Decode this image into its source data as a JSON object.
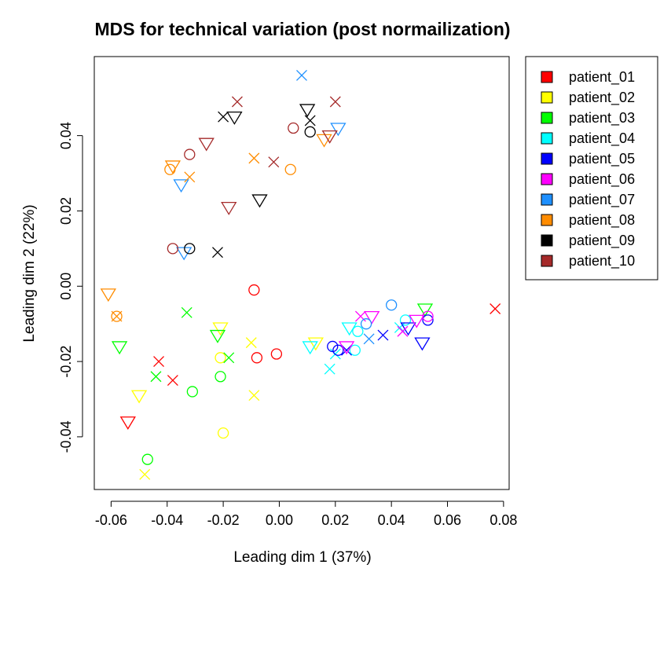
{
  "chart_data": {
    "type": "scatter",
    "title": "MDS for technical variation (post normailization)",
    "xlabel": "Leading dim 1 (37%)",
    "ylabel": "Leading dim 2 (22%)",
    "xlim": [
      -0.066,
      0.082
    ],
    "ylim": [
      -0.054,
      0.061
    ],
    "xticks": [
      "-0.06",
      "-0.04",
      "-0.02",
      "0.00",
      "0.02",
      "0.04",
      "0.06",
      "0.08"
    ],
    "xtick_values": [
      -0.06,
      -0.04,
      -0.02,
      0.0,
      0.02,
      0.04,
      0.06,
      0.08
    ],
    "yticks": [
      "-0.04",
      "-0.02",
      "0.00",
      "0.02",
      "0.04"
    ],
    "ytick_values": [
      -0.04,
      -0.02,
      0.0,
      0.02,
      0.04
    ],
    "grid": false,
    "legend_position": "top-right outside",
    "marker_shapes": [
      "circle",
      "triangle-down",
      "x"
    ],
    "series": [
      {
        "name": "patient_01",
        "color": "#FF0000",
        "points": [
          [
            -0.009,
            -0.001,
            "circle"
          ],
          [
            -0.001,
            -0.018,
            "circle"
          ],
          [
            -0.008,
            -0.019,
            "circle"
          ],
          [
            -0.054,
            -0.036,
            "triangle-down"
          ],
          [
            -0.043,
            -0.02,
            "x"
          ],
          [
            -0.038,
            -0.025,
            "x"
          ],
          [
            0.077,
            -0.006,
            "x"
          ]
        ]
      },
      {
        "name": "patient_02",
        "color": "#FFFF00",
        "points": [
          [
            -0.021,
            -0.019,
            "circle"
          ],
          [
            -0.02,
            -0.039,
            "circle"
          ],
          [
            -0.021,
            -0.011,
            "triangle-down"
          ],
          [
            -0.05,
            -0.029,
            "triangle-down"
          ],
          [
            0.013,
            -0.015,
            "triangle-down"
          ],
          [
            -0.01,
            -0.015,
            "x"
          ],
          [
            -0.009,
            -0.029,
            "x"
          ],
          [
            -0.048,
            -0.05,
            "x"
          ]
        ]
      },
      {
        "name": "patient_03",
        "color": "#00FF00",
        "points": [
          [
            -0.047,
            -0.046,
            "circle"
          ],
          [
            -0.031,
            -0.028,
            "circle"
          ],
          [
            -0.021,
            -0.024,
            "circle"
          ],
          [
            -0.057,
            -0.016,
            "triangle-down"
          ],
          [
            -0.022,
            -0.013,
            "triangle-down"
          ],
          [
            0.052,
            -0.006,
            "triangle-down"
          ],
          [
            -0.033,
            -0.007,
            "x"
          ],
          [
            -0.044,
            -0.024,
            "x"
          ],
          [
            -0.018,
            -0.019,
            "x"
          ]
        ]
      },
      {
        "name": "patient_04",
        "color": "#00FFFF",
        "points": [
          [
            0.027,
            -0.017,
            "circle"
          ],
          [
            0.028,
            -0.012,
            "circle"
          ],
          [
            0.045,
            -0.009,
            "circle"
          ],
          [
            0.011,
            -0.016,
            "triangle-down"
          ],
          [
            0.025,
            -0.011,
            "triangle-down"
          ],
          [
            0.018,
            -0.022,
            "x"
          ],
          [
            0.02,
            -0.018,
            "x"
          ],
          [
            0.043,
            -0.011,
            "x"
          ]
        ]
      },
      {
        "name": "patient_05",
        "color": "#0000FF",
        "points": [
          [
            0.019,
            -0.016,
            "circle"
          ],
          [
            0.021,
            -0.017,
            "circle"
          ],
          [
            0.053,
            -0.009,
            "circle"
          ],
          [
            0.046,
            -0.011,
            "triangle-down"
          ],
          [
            0.051,
            -0.015,
            "triangle-down"
          ],
          [
            0.024,
            -0.017,
            "x"
          ],
          [
            0.037,
            -0.013,
            "x"
          ]
        ]
      },
      {
        "name": "patient_06",
        "color": "#FF00FF",
        "points": [
          [
            0.053,
            -0.008,
            "circle"
          ],
          [
            0.024,
            -0.016,
            "triangle-down"
          ],
          [
            0.033,
            -0.008,
            "triangle-down"
          ],
          [
            0.049,
            -0.009,
            "triangle-down"
          ],
          [
            0.029,
            -0.008,
            "x"
          ],
          [
            0.044,
            -0.012,
            "x"
          ]
        ]
      },
      {
        "name": "patient_07",
        "color": "#1E90FF",
        "points": [
          [
            0.031,
            -0.01,
            "circle"
          ],
          [
            0.04,
            -0.005,
            "circle"
          ],
          [
            -0.035,
            0.027,
            "triangle-down"
          ],
          [
            -0.034,
            0.009,
            "triangle-down"
          ],
          [
            0.021,
            0.042,
            "triangle-down"
          ],
          [
            0.008,
            0.056,
            "x"
          ],
          [
            0.032,
            -0.014,
            "x"
          ]
        ]
      },
      {
        "name": "patient_08",
        "color": "#FF8C00",
        "points": [
          [
            -0.039,
            0.031,
            "circle"
          ],
          [
            0.004,
            0.031,
            "circle"
          ],
          [
            -0.058,
            -0.008,
            "circle"
          ],
          [
            -0.038,
            0.032,
            "triangle-down"
          ],
          [
            0.016,
            0.039,
            "triangle-down"
          ],
          [
            -0.061,
            -0.002,
            "triangle-down"
          ],
          [
            -0.032,
            0.029,
            "x"
          ],
          [
            -0.009,
            0.034,
            "x"
          ],
          [
            -0.058,
            -0.008,
            "x"
          ]
        ]
      },
      {
        "name": "patient_09",
        "color": "#000000",
        "points": [
          [
            -0.032,
            0.01,
            "circle"
          ],
          [
            0.011,
            0.041,
            "circle"
          ],
          [
            -0.016,
            0.045,
            "triangle-down"
          ],
          [
            0.01,
            0.047,
            "triangle-down"
          ],
          [
            -0.007,
            0.023,
            "triangle-down"
          ],
          [
            -0.02,
            0.045,
            "x"
          ],
          [
            0.011,
            0.044,
            "x"
          ],
          [
            -0.022,
            0.009,
            "x"
          ]
        ]
      },
      {
        "name": "patient_10",
        "color": "#A52A2A",
        "points": [
          [
            -0.038,
            0.01,
            "circle"
          ],
          [
            -0.032,
            0.035,
            "circle"
          ],
          [
            0.005,
            0.042,
            "circle"
          ],
          [
            -0.026,
            0.038,
            "triangle-down"
          ],
          [
            -0.018,
            0.021,
            "triangle-down"
          ],
          [
            0.018,
            0.04,
            "triangle-down"
          ],
          [
            -0.015,
            0.049,
            "x"
          ],
          [
            -0.002,
            0.033,
            "x"
          ],
          [
            0.02,
            0.049,
            "x"
          ]
        ]
      }
    ]
  }
}
